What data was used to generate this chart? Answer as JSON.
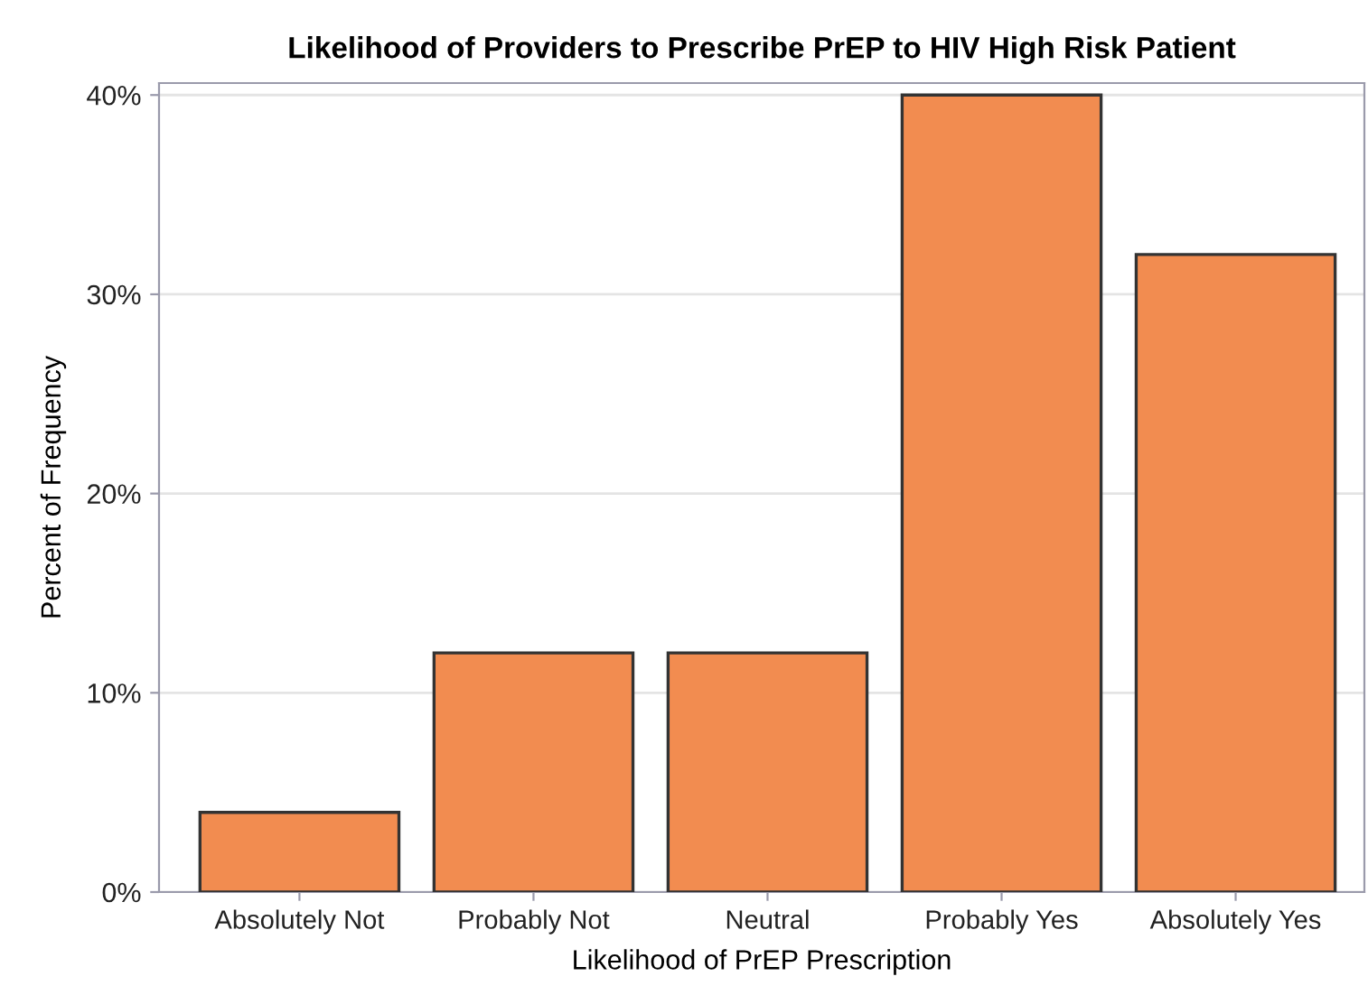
{
  "chart_data": {
    "type": "bar",
    "title": "Likelihood of Providers to Prescribe PrEP to HIV High Risk Patient",
    "xlabel": "Likelihood of PrEP Prescription",
    "ylabel": "Percent of Frequency",
    "categories": [
      "Absolutely Not",
      "Probably Not",
      "Neutral",
      "Probably Yes",
      "Absolutely Yes"
    ],
    "values": [
      4,
      12,
      12,
      40,
      32
    ],
    "color": "#f28c50",
    "ylim": [
      0,
      40.6
    ],
    "yticks": [
      {
        "value": 0,
        "label": "0%"
      },
      {
        "value": 10,
        "label": "10%"
      },
      {
        "value": 20,
        "label": "20%"
      },
      {
        "value": 30,
        "label": "30%"
      },
      {
        "value": 40,
        "label": "40%"
      }
    ],
    "grid": "y",
    "legend": false
  }
}
